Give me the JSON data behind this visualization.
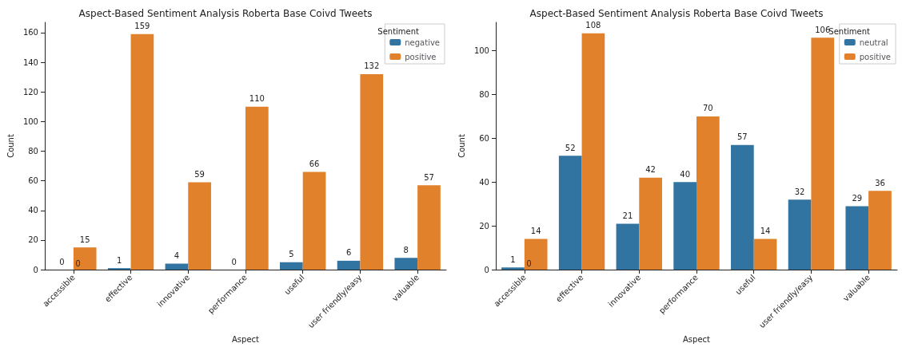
{
  "chart_data": [
    {
      "type": "bar",
      "title": "Aspect-Based Sentiment Analysis Roberta Base Coivd Tweets",
      "xlabel": "Aspect",
      "ylabel": "Count",
      "legend_title": "Sentiment",
      "legend": "top right",
      "data_labels": true,
      "grid": false,
      "categories": [
        "accessible",
        "effective",
        "innovative",
        "performance",
        "useful",
        "user friendly/easy",
        "valuable"
      ],
      "ylim": [
        0,
        167
      ],
      "yticks": [
        0,
        20,
        40,
        60,
        80,
        100,
        120,
        140,
        160
      ],
      "series": [
        {
          "name": "negative",
          "color": "#3274a1",
          "values": [
            0,
            1,
            4,
            0,
            5,
            6,
            8
          ]
        },
        {
          "name": "positive",
          "color": "#e1812c",
          "values": [
            15,
            159,
            59,
            110,
            66,
            132,
            57
          ]
        }
      ],
      "annotations": [
        {
          "text": "0",
          "x": "accessible",
          "y": 0
        }
      ]
    },
    {
      "type": "bar",
      "title": "Aspect-Based Sentiment Analysis Roberta Base Coivd Tweets",
      "xlabel": "Aspect",
      "ylabel": "Count",
      "legend_title": "Sentiment",
      "legend": "top right",
      "data_labels": true,
      "grid": false,
      "categories": [
        "accessible",
        "effective",
        "innovative",
        "performance",
        "useful",
        "user friendly/easy",
        "valuable"
      ],
      "ylim": [
        0,
        113
      ],
      "yticks": [
        0,
        20,
        40,
        60,
        80,
        100
      ],
      "series": [
        {
          "name": "neutral",
          "color": "#3274a1",
          "values": [
            1,
            52,
            21,
            40,
            57,
            32,
            29
          ]
        },
        {
          "name": "positive",
          "color": "#e1812c",
          "values": [
            14,
            108,
            42,
            70,
            14,
            106,
            36
          ]
        }
      ],
      "annotations": [
        {
          "text": "0",
          "x": "accessible",
          "y": 0
        }
      ]
    }
  ]
}
